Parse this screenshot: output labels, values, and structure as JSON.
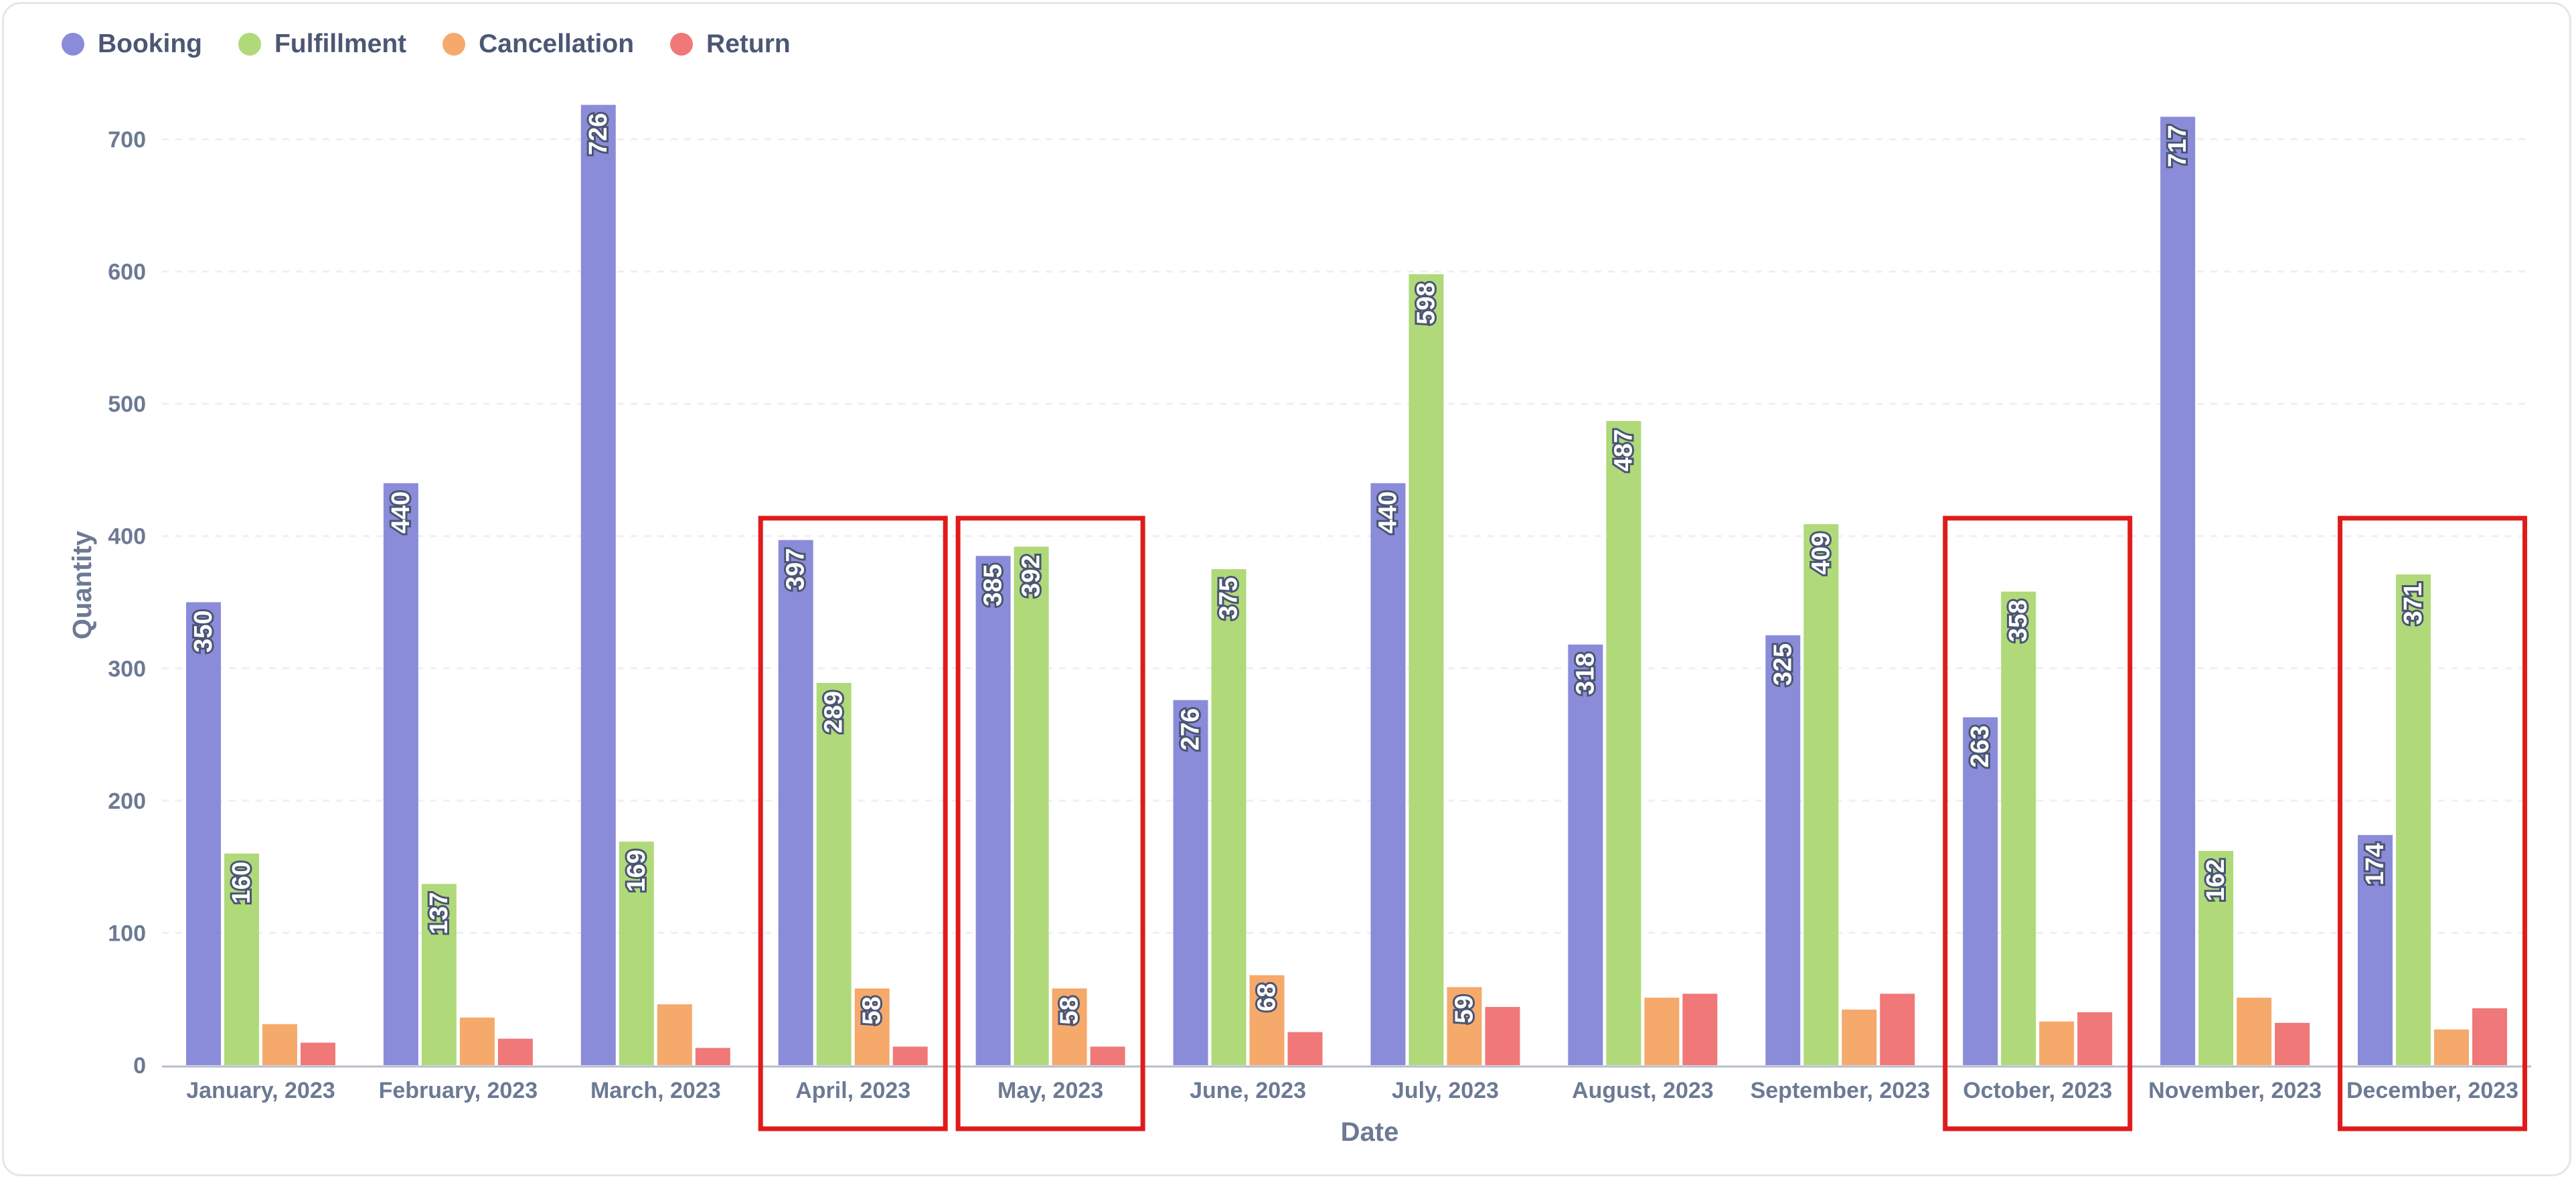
{
  "chart_data": {
    "type": "bar",
    "xlabel": "Date",
    "ylabel": "Quantity",
    "ylim": [
      0,
      730
    ],
    "yticks": [
      0,
      100,
      200,
      300,
      400,
      500,
      600,
      700
    ],
    "grid": true,
    "legend_position": "top-left",
    "categories": [
      "January, 2023",
      "February, 2023",
      "March, 2023",
      "April, 2023",
      "May, 2023",
      "June, 2023",
      "July, 2023",
      "August, 2023",
      "September, 2023",
      "October, 2023",
      "November, 2023",
      "December, 2023"
    ],
    "series": [
      {
        "name": "Booking",
        "color": "#8a8cd9",
        "values": [
          350,
          440,
          726,
          397,
          385,
          276,
          440,
          318,
          325,
          263,
          717,
          174
        ]
      },
      {
        "name": "Fulfillment",
        "color": "#b0d97a",
        "values": [
          160,
          137,
          169,
          289,
          392,
          375,
          598,
          487,
          409,
          358,
          162,
          371
        ]
      },
      {
        "name": "Cancellation",
        "color": "#f5a96b",
        "values": [
          31,
          36,
          46,
          58,
          58,
          68,
          59,
          51,
          42,
          33,
          51,
          27
        ]
      },
      {
        "name": "Return",
        "color": "#f07878",
        "values": [
          17,
          20,
          13,
          14,
          14,
          25,
          44,
          54,
          54,
          40,
          32,
          43
        ]
      }
    ],
    "data_labels": {
      "Booking": [
        true,
        true,
        true,
        true,
        true,
        true,
        true,
        true,
        true,
        true,
        true,
        true
      ],
      "Fulfillment": [
        true,
        true,
        true,
        true,
        true,
        true,
        true,
        true,
        true,
        true,
        true,
        true
      ],
      "Cancellation": [
        false,
        false,
        false,
        true,
        true,
        true,
        true,
        false,
        false,
        false,
        false,
        false
      ],
      "Return": [
        false,
        false,
        false,
        false,
        false,
        false,
        false,
        false,
        false,
        false,
        false,
        false
      ]
    },
    "highlighted_categories": [
      "April, 2023",
      "May, 2023",
      "October, 2023",
      "December, 2023"
    ],
    "highlight_color": "#e01b1b",
    "grid_color": "#edf0f3",
    "axis_color": "#b7bccb"
  }
}
